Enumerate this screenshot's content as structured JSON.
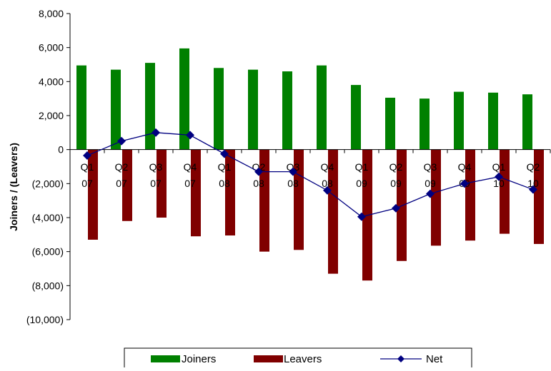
{
  "chart_data": {
    "type": "bar",
    "categories": [
      {
        "q": "Q1",
        "y": "07"
      },
      {
        "q": "Q2",
        "y": "07"
      },
      {
        "q": "Q3",
        "y": "07"
      },
      {
        "q": "Q4",
        "y": "07"
      },
      {
        "q": "Q1",
        "y": "08"
      },
      {
        "q": "Q2",
        "y": "08"
      },
      {
        "q": "Q3",
        "y": "08"
      },
      {
        "q": "Q4",
        "y": "08"
      },
      {
        "q": "Q1",
        "y": "09"
      },
      {
        "q": "Q2",
        "y": "09"
      },
      {
        "q": "Q3",
        "y": "09"
      },
      {
        "q": "Q4",
        "y": "09"
      },
      {
        "q": "Q1",
        "y": "10"
      },
      {
        "q": "Q2",
        "y": "10"
      }
    ],
    "series": [
      {
        "name": "Joiners",
        "type": "bar",
        "color": "#008000",
        "values": [
          4950,
          4700,
          5100,
          5950,
          4800,
          4700,
          4600,
          4950,
          3800,
          3050,
          3000,
          3400,
          3350,
          3250
        ]
      },
      {
        "name": "Leavers",
        "type": "bar",
        "color": "#800000",
        "values": [
          -5300,
          -4200,
          -4000,
          -5100,
          -5050,
          -6000,
          -5900,
          -7300,
          -7700,
          -6550,
          -5650,
          -5350,
          -4950,
          -5550
        ]
      },
      {
        "name": "Net",
        "type": "line",
        "color": "#000080",
        "values": [
          -350,
          500,
          1000,
          850,
          -250,
          -1300,
          -1300,
          -2400,
          -3950,
          -3450,
          -2600,
          -2000,
          -1600,
          -2350
        ]
      }
    ],
    "ylabel": "Joiners  / (Leavers)",
    "ylim": [
      -10000,
      8000
    ],
    "yticks": [
      {
        "value": 8000,
        "label": "8,000"
      },
      {
        "value": 6000,
        "label": "6,000"
      },
      {
        "value": 4000,
        "label": "4,000"
      },
      {
        "value": 2000,
        "label": "2,000"
      },
      {
        "value": 0,
        "label": "0"
      },
      {
        "value": -2000,
        "label": "(2,000)"
      },
      {
        "value": -4000,
        "label": "(4,000)"
      },
      {
        "value": -6000,
        "label": "(6,000)"
      },
      {
        "value": -8000,
        "label": "(8,000)"
      },
      {
        "value": -10000,
        "label": "(10,000)"
      }
    ],
    "grid": false,
    "legend": {
      "position": "bottom",
      "items": [
        "Joiners",
        "Leavers",
        "Net"
      ]
    }
  }
}
